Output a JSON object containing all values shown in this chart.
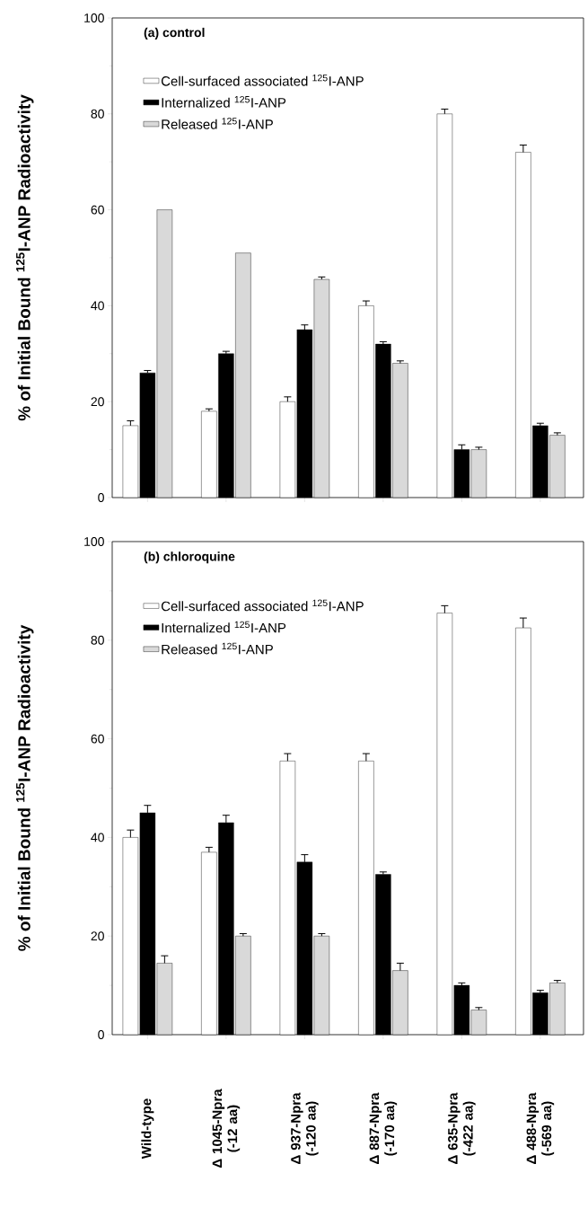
{
  "chart_data": [
    {
      "type": "bar",
      "title": "(a) control",
      "ylabel": "% of Initial Bound $^{125}$I-ANP Radioactivity",
      "categories": [
        null,
        null,
        null,
        null,
        null,
        null
      ],
      "series": [
        {
          "name": "Cell-surfaced associated $^{125}$I-ANP",
          "color": "#ffffff",
          "values": [
            15,
            18,
            20,
            40,
            80,
            72
          ],
          "errors": [
            [
              15,
              16
            ],
            [
              18,
              18.5
            ],
            [
              20,
              21
            ],
            [
              40,
              41
            ],
            [
              80,
              81
            ],
            [
              72,
              73.5
            ]
          ]
        },
        {
          "name": "Internalized $^{125}$I-ANP",
          "color": "#000000",
          "values": [
            26,
            30,
            35,
            32,
            10,
            15
          ],
          "errors": [
            [
              26,
              26.5
            ],
            [
              30,
              30.5
            ],
            [
              35,
              36
            ],
            [
              32,
              32.5
            ],
            [
              10,
              11
            ],
            [
              15,
              15.5
            ]
          ]
        },
        {
          "name": "Released $^{125}$I-ANP",
          "color": "#d9d9d9",
          "values": [
            60,
            51,
            45.5,
            28,
            10,
            13
          ],
          "errors": [
            null,
            null,
            [
              45.5,
              46
            ],
            [
              28,
              28.5
            ],
            [
              10,
              10.5
            ],
            [
              13,
              13.5
            ]
          ]
        }
      ],
      "ylim": [
        0,
        100
      ],
      "yticks": [
        0,
        20,
        40,
        60,
        80,
        100
      ],
      "legend": "top left",
      "tick_labels": "y"
    },
    {
      "type": "bar",
      "title": "(b) chloroquine",
      "ylabel": "% of Initial Bound $^{125}$I-ANP Radioactivity",
      "categories": [
        "Wild-type",
        "Δ 1045-Npra (-12 aa)",
        "Δ 937-Npra (-120 aa)",
        "Δ 887-Npra (-170 aa)",
        "Δ 635-Npra (-422 aa)",
        "Δ 488-Npra (-569 aa)"
      ],
      "series": [
        {
          "name": "Cell-surfaced associated $^{125}$I-ANP",
          "color": "#ffffff",
          "values": [
            40,
            37,
            55.5,
            55.5,
            85.5,
            82.5
          ],
          "errors": [
            [
              40,
              41.5
            ],
            [
              37,
              38
            ],
            [
              55.5,
              57
            ],
            [
              55.5,
              57
            ],
            [
              85.5,
              87
            ],
            [
              82.5,
              84.5
            ]
          ]
        },
        {
          "name": "Internalized $^{125}$I-ANP",
          "color": "#000000",
          "values": [
            45,
            43,
            35,
            32.5,
            10,
            8.5
          ],
          "errors": [
            [
              45,
              46.5
            ],
            [
              43,
              44.5
            ],
            [
              35,
              36.5
            ],
            [
              32.5,
              33
            ],
            [
              10,
              10.5
            ],
            [
              8.5,
              9
            ]
          ]
        },
        {
          "name": "Released $^{125}$I-ANP",
          "color": "#d9d9d9",
          "values": [
            14.5,
            20,
            20,
            13,
            5,
            10.5
          ],
          "errors": [
            [
              14.5,
              16
            ],
            [
              20,
              20.5
            ],
            [
              20,
              20.5
            ],
            [
              13,
              14.5
            ],
            [
              5,
              5.5
            ],
            [
              10.5,
              11
            ]
          ]
        }
      ],
      "ylim": [
        0,
        100
      ],
      "yticks": [
        0,
        20,
        40,
        60,
        80,
        100
      ],
      "legend": "top left"
    }
  ]
}
